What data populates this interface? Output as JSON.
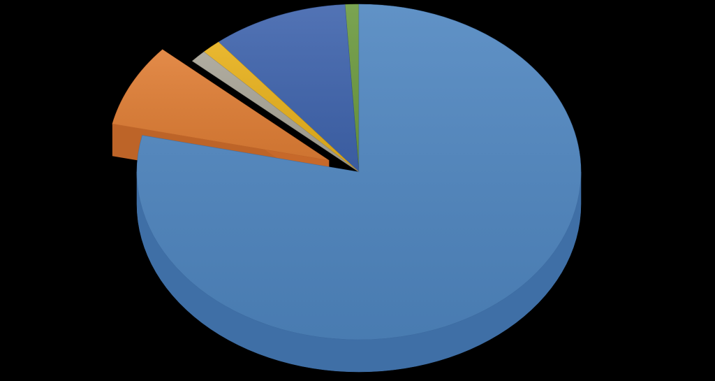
{
  "chart_data": {
    "type": "pie",
    "style": "3d-exploded",
    "title": "",
    "legend": "none",
    "data_labels": "none",
    "start_angle_deg": 0,
    "direction": "clockwise",
    "slices": [
      {
        "value": 78.5,
        "color": "#4f86c0",
        "side_color": "#3f6fa6",
        "exploded": false
      },
      {
        "value": 8.0,
        "color": "#e07e35",
        "side_color": "#c7692a",
        "exploded": true
      },
      {
        "value": 1.2,
        "color": "#a8a496",
        "side_color": "#8c8879",
        "exploded": false
      },
      {
        "value": 1.4,
        "color": "#e7b01a",
        "side_color": "#c39312",
        "exploded": false
      },
      {
        "value": 9.9,
        "color": "#3f64ad",
        "side_color": "#32518f",
        "exploded": false
      },
      {
        "value": 1.0,
        "color": "#6c9a3f",
        "side_color": "#567c31",
        "exploded": false
      }
    ]
  }
}
